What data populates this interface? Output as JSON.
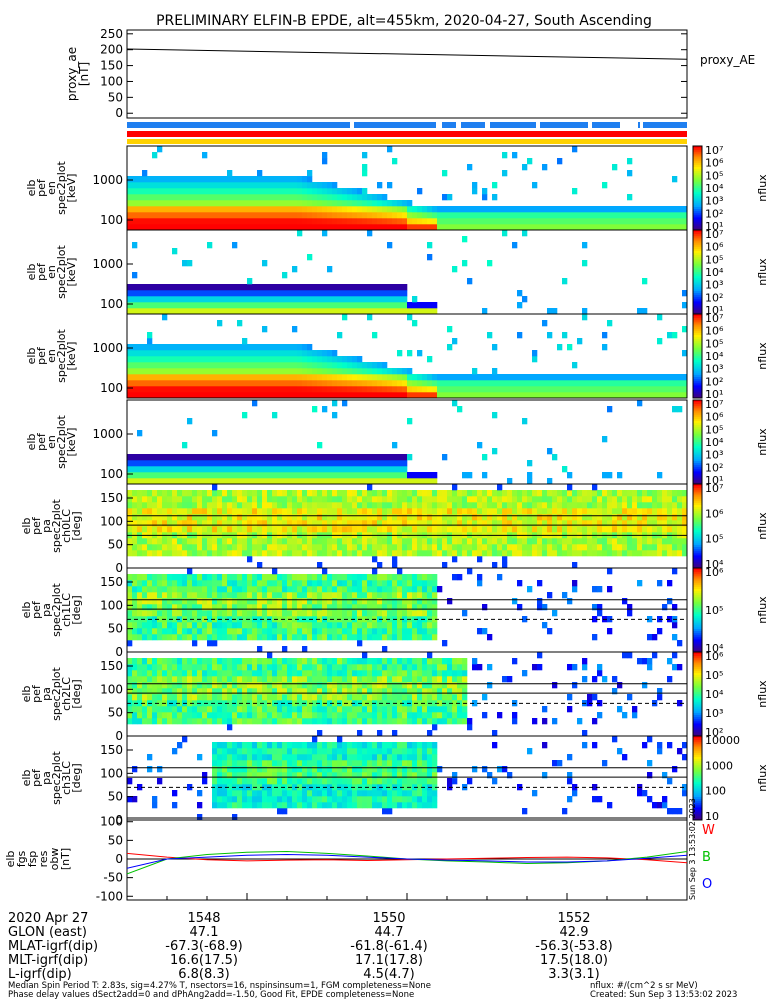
{
  "title": "PRELIMINARY ELFIN-B EPDE, alt=455km, 2020-04-27, South Ascending",
  "proxy_ae": {
    "ylabel": [
      "proxy_ae",
      "[nT]"
    ],
    "yticks": [
      "250",
      "200",
      "150",
      "100",
      "50",
      "0"
    ],
    "legend": "proxy_AE",
    "ylim": [
      -15,
      262
    ],
    "line": {
      "x": [
        0,
        1
      ],
      "y": [
        202,
        170
      ]
    }
  },
  "spin_bar_colors": {
    "blue": "#1f7ff0",
    "red": "#ff0000",
    "yellow": "#ffd200"
  },
  "panels": [
    {
      "ylabel": [
        "elb",
        "pef",
        "en",
        "spec2plot",
        "[keV]"
      ],
      "yticks": [
        "1000",
        "100"
      ],
      "cb_ticks": [
        "10⁷",
        "10⁶",
        "10⁵",
        "10⁴",
        "10³",
        "10²",
        "10¹"
      ],
      "cb_unit": "nflux",
      "type": "energy"
    },
    {
      "ylabel": [
        "elb",
        "pef",
        "en",
        "spec2plot",
        "[keV]"
      ],
      "yticks": [
        "1000",
        "100"
      ],
      "cb_ticks": [
        "10⁷",
        "10⁶",
        "10⁵",
        "10⁴",
        "10³",
        "10²",
        "10¹"
      ],
      "cb_unit": "nflux",
      "type": "energy"
    },
    {
      "ylabel": [
        "elb",
        "pef",
        "en",
        "spec2plot",
        "[keV]"
      ],
      "yticks": [
        "1000",
        "100"
      ],
      "cb_ticks": [
        "10⁷",
        "10⁶",
        "10⁵",
        "10⁴",
        "10³",
        "10²",
        "10¹"
      ],
      "cb_unit": "nflux",
      "type": "energy"
    },
    {
      "ylabel": [
        "elb",
        "pef",
        "en",
        "spec2plot",
        "[keV]"
      ],
      "yticks": [
        "1000",
        "100"
      ],
      "cb_ticks": [
        "10⁷",
        "10⁶",
        "10⁵",
        "10⁴",
        "10³",
        "10²",
        "10¹"
      ],
      "cb_unit": "nflux",
      "type": "energy"
    },
    {
      "ylabel": [
        "elb",
        "pef",
        "pa",
        "spec2plot",
        "ch0LC",
        "[deg]"
      ],
      "yticks": [
        "150",
        "100",
        "50",
        "0"
      ],
      "cb_ticks": [
        "10⁷",
        "10⁶",
        "10⁵",
        "10⁴"
      ],
      "cb_unit": "nflux",
      "type": "pitch"
    },
    {
      "ylabel": [
        "elb",
        "pef",
        "pa",
        "spec2plot",
        "ch1LC",
        "[deg]"
      ],
      "yticks": [
        "150",
        "100",
        "50",
        "0"
      ],
      "cb_ticks": [
        "10⁶",
        "10⁵",
        "10⁴"
      ],
      "cb_unit": "nflux",
      "type": "pitch"
    },
    {
      "ylabel": [
        "elb",
        "pef",
        "pa",
        "spec2plot",
        "ch2LC",
        "[deg]"
      ],
      "yticks": [
        "150",
        "100",
        "50",
        "0"
      ],
      "cb_ticks": [
        "10⁶",
        "10⁵",
        "10⁴",
        "10³",
        "10²"
      ],
      "cb_unit": "nflux",
      "type": "pitch"
    },
    {
      "ylabel": [
        "elb",
        "pef",
        "pa",
        "spec2plot",
        "ch3LC",
        "[deg]"
      ],
      "yticks": [
        "150",
        "100",
        "50",
        "0"
      ],
      "cb_ticks": [
        "10000",
        "1000",
        "100",
        "10"
      ],
      "cb_unit": "nflux",
      "type": "pitch"
    }
  ],
  "fgm": {
    "ylabel": [
      "elb",
      "fgs",
      "fsp",
      "res",
      "obw",
      "[nT]"
    ],
    "yticks": [
      "100",
      "50",
      "0",
      "-50",
      "-100"
    ],
    "legend": [
      {
        "name": "W",
        "color": "#ff0000"
      },
      {
        "name": "B",
        "color": "#00c000"
      },
      {
        "name": "O",
        "color": "#0000ff"
      }
    ],
    "ylim": [
      -110,
      110
    ]
  },
  "side_stamp": "Sun Sep  3 13:53:02 2023",
  "chart_data": {
    "type": "line",
    "title": "PRELIMINARY ELFIN-B EPDE, alt=455km, 2020-04-27, South Ascending",
    "x_ticks": [
      "1548",
      "1550",
      "1552"
    ],
    "x_range": [
      1546.5,
      1553.5
    ],
    "series": [
      {
        "name": "proxy_AE",
        "x": [
          1546.5,
          1553.5
        ],
        "values": [
          202,
          170
        ]
      },
      {
        "name": "W",
        "x": [
          1546.5,
          1547,
          1547.5,
          1548,
          1548.5,
          1549,
          1549.5,
          1550,
          1550.5,
          1551,
          1551.5,
          1552,
          1552.5,
          1553,
          1553.5
        ],
        "values": [
          15,
          5,
          -2,
          -5,
          -3,
          -2,
          -4,
          -2,
          0,
          2,
          4,
          5,
          3,
          -2,
          -10
        ]
      },
      {
        "name": "B",
        "x": [
          1546.5,
          1547,
          1547.5,
          1548,
          1548.5,
          1549,
          1549.5,
          1550,
          1550.5,
          1551,
          1551.5,
          1552,
          1552.5,
          1553,
          1553.5
        ],
        "values": [
          -40,
          0,
          12,
          18,
          20,
          15,
          8,
          0,
          -5,
          -8,
          -12,
          -10,
          -5,
          5,
          20
        ]
      },
      {
        "name": "O",
        "x": [
          1546.5,
          1547,
          1547.5,
          1548,
          1548.5,
          1549,
          1549.5,
          1550,
          1550.5,
          1551,
          1551.5,
          1552,
          1552.5,
          1553,
          1553.5
        ],
        "values": [
          -25,
          0,
          5,
          10,
          12,
          10,
          5,
          0,
          -3,
          -5,
          -8,
          -8,
          -5,
          2,
          10
        ]
      }
    ]
  },
  "orbit_table": {
    "rows": [
      {
        "label": "2020 Apr 27",
        "values": [
          "1548",
          "1550",
          "1552"
        ]
      },
      {
        "label": "GLON (east)",
        "values": [
          "47.1",
          "44.7",
          "42.9"
        ]
      },
      {
        "label": "MLAT-igrf(dip)",
        "values": [
          "-67.3(-68.9)",
          "-61.8(-61.4)",
          "-56.3(-53.8)"
        ]
      },
      {
        "label": "MLT-igrf(dip)",
        "values": [
          "16.6(17.5)",
          "17.1(17.8)",
          "17.5(18.0)"
        ]
      },
      {
        "label": "L-igrf(dip)",
        "values": [
          "6.8(8.3)",
          "4.5(4.7)",
          "3.3(3.1)"
        ]
      }
    ]
  },
  "footer": {
    "line1": "Median Spin Period T: 2.83s, sig=4.27% T, nsectors=16, nspinsinsum=1, FGM completeness=None",
    "line2": "Phase delay values dSect2add=0 and dPhAng2add=-1.50, Good Fit, EPDE completeness=None",
    "units": "nflux: #/(cm^2 s sr MeV)",
    "created": "Created: Sun Sep  3 13:53:02 2023"
  }
}
